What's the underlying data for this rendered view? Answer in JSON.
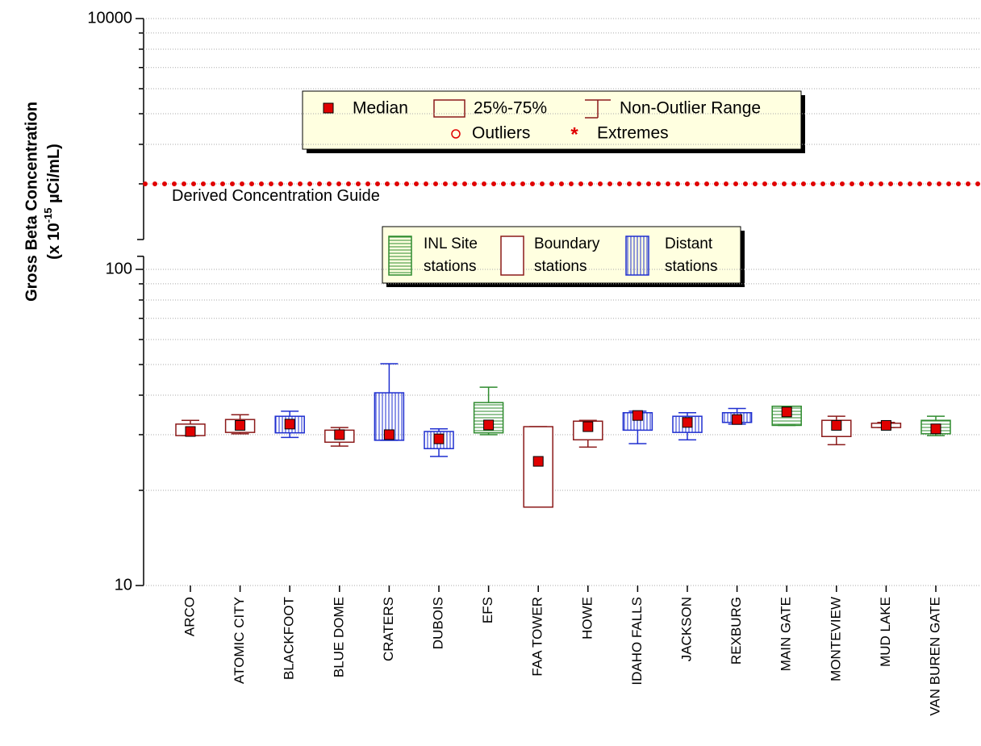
{
  "chart_data": {
    "type": "box",
    "ylabel": {
      "line1": "Gross Beta Concentration",
      "prefix": "(x 10",
      "exponent": "-15",
      "suffix": " µCi/mL)"
    },
    "log_scale": true,
    "ylim": [
      10,
      10000
    ],
    "axis_break": [
      110,
      2000
    ],
    "yticks": [
      10,
      100,
      10000
    ],
    "minor_yticks": [
      20,
      30,
      40,
      50,
      60,
      70,
      80,
      90,
      3000,
      4000,
      5000,
      6000,
      7000,
      8000,
      9000
    ],
    "grid": true,
    "median_color": "#e00000",
    "groups": [
      {
        "name": "INL Site stations",
        "color": "#2e8b2e",
        "pattern": "horizontal"
      },
      {
        "name": "Boundary stations",
        "color": "#8b1a1a",
        "pattern": "none"
      },
      {
        "name": "Distant stations",
        "color": "#1f2fd0",
        "pattern": "vertical"
      }
    ],
    "categories": [
      "ARCO",
      "ATOMIC CITY",
      "BLACKFOOT",
      "BLUE DOME",
      "CRATERS",
      "DUBOIS",
      "EFS",
      "FAA TOWER",
      "HOWE",
      "IDAHO FALLS",
      "JACKSON",
      "REXBURG",
      "MAIN GATE",
      "MONTEVIEW",
      "MUD LAKE",
      "VAN BUREN GATE"
    ],
    "boxes": [
      {
        "group": 1,
        "min": 29.8,
        "q1": 29.8,
        "median": 30.7,
        "q3": 32.4,
        "max": 33.3
      },
      {
        "group": 1,
        "min": 30.2,
        "q1": 30.5,
        "median": 32.1,
        "q3": 33.5,
        "max": 34.7
      },
      {
        "group": 2,
        "min": 29.4,
        "q1": 30.4,
        "median": 32.4,
        "q3": 34.3,
        "max": 35.6
      },
      {
        "group": 1,
        "min": 27.6,
        "q1": 28.4,
        "median": 30.0,
        "q3": 31.0,
        "max": 31.6
      },
      {
        "group": 2,
        "min": 28.8,
        "q1": 28.8,
        "median": 30.0,
        "q3": 40.7,
        "max": 50.3
      },
      {
        "group": 2,
        "min": 25.6,
        "q1": 27.1,
        "median": 29.1,
        "q3": 30.7,
        "max": 31.3
      },
      {
        "group": 0,
        "min": 30.0,
        "q1": 30.4,
        "median": 32.2,
        "q3": 37.9,
        "max": 42.4
      },
      {
        "group": 1,
        "min": 17.7,
        "q1": 17.7,
        "median": 24.7,
        "q3": 31.8,
        "max": 31.8
      },
      {
        "group": 1,
        "min": 27.4,
        "q1": 28.9,
        "median": 31.8,
        "q3": 33.1,
        "max": 33.3
      },
      {
        "group": 2,
        "min": 28.1,
        "q1": 31.0,
        "median": 34.5,
        "q3": 35.2,
        "max": 35.6
      },
      {
        "group": 2,
        "min": 28.9,
        "q1": 30.5,
        "median": 32.8,
        "q3": 34.3,
        "max": 35.2
      },
      {
        "group": 2,
        "min": 32.4,
        "q1": 32.8,
        "median": 33.5,
        "q3": 35.2,
        "max": 36.3
      },
      {
        "group": 0,
        "min": 32.1,
        "q1": 32.1,
        "median": 35.4,
        "q3": 36.9,
        "max": 36.9
      },
      {
        "group": 1,
        "min": 27.9,
        "q1": 29.6,
        "median": 32.1,
        "q3": 33.3,
        "max": 34.3
      },
      {
        "group": 1,
        "min": 31.6,
        "q1": 31.6,
        "median": 32.1,
        "q3": 32.6,
        "max": 32.8
      },
      {
        "group": 0,
        "min": 29.8,
        "q1": 30.2,
        "median": 31.3,
        "q3": 33.3,
        "max": 34.3
      }
    ],
    "reference_line": {
      "label": "Derived Concentration Guide",
      "value": 3000,
      "color": "#e00000"
    },
    "legend": {
      "median": "Median",
      "box": "25%-75%",
      "whisker": "Non-Outlier Range",
      "outliers": "Outliers",
      "extremes": "Extremes"
    }
  }
}
